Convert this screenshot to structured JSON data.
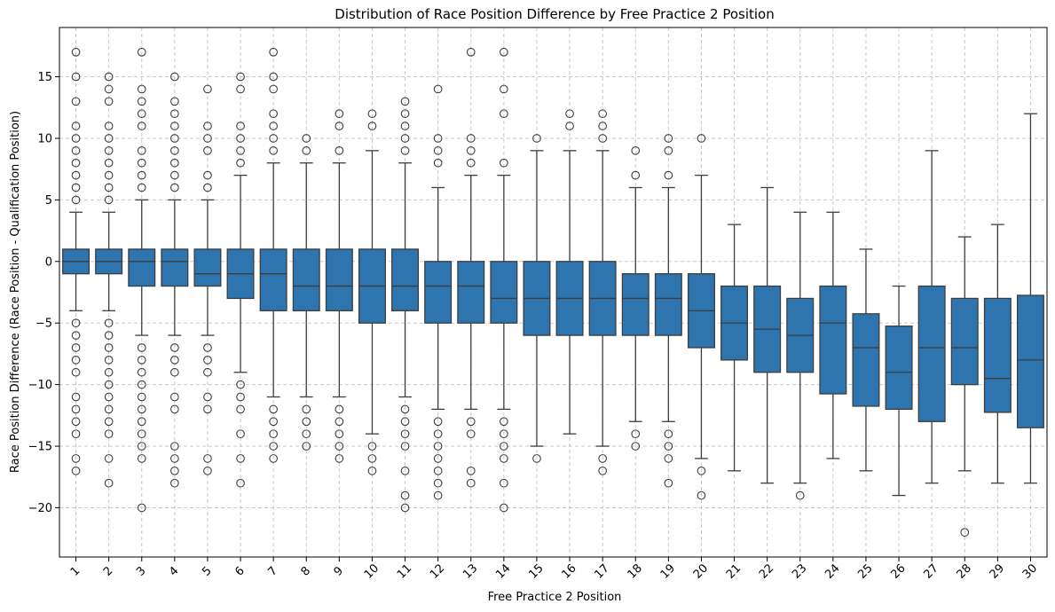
{
  "chart_data": {
    "type": "box",
    "title": "Distribution of Race Position Difference by Free Practice 2 Position",
    "xlabel": "Free Practice 2 Position",
    "ylabel": "Race Position Difference (Race Position - Qualification Position)",
    "ylim": [
      -24,
      19
    ],
    "yticks": [
      -20,
      -15,
      -10,
      -5,
      0,
      5,
      10,
      15
    ],
    "grid": true,
    "box_color": "#2e75b0",
    "line_color": "#3d3d3d",
    "categories": [
      "1",
      "2",
      "3",
      "4",
      "5",
      "6",
      "7",
      "8",
      "9",
      "10",
      "11",
      "12",
      "13",
      "14",
      "15",
      "16",
      "17",
      "18",
      "19",
      "20",
      "21",
      "22",
      "23",
      "24",
      "25",
      "26",
      "27",
      "28",
      "29",
      "30"
    ],
    "boxes": [
      {
        "x": "1",
        "q1": -1,
        "median": 0,
        "q3": 1,
        "whisker_low": -4,
        "whisker_high": 4,
        "outliers": [
          5,
          6,
          7,
          8,
          9,
          10,
          11,
          13,
          15,
          17,
          -5,
          -6,
          -7,
          -8,
          -9,
          -11,
          -12,
          -13,
          -14,
          -16,
          -17
        ]
      },
      {
        "x": "2",
        "q1": -1,
        "median": 0,
        "q3": 1,
        "whisker_low": -4,
        "whisker_high": 4,
        "outliers": [
          5,
          6,
          7,
          8,
          9,
          10,
          11,
          13,
          14,
          15,
          -5,
          -6,
          -7,
          -8,
          -9,
          -10,
          -11,
          -12,
          -13,
          -14,
          -16,
          -18
        ]
      },
      {
        "x": "3",
        "q1": -2,
        "median": 0,
        "q3": 1,
        "whisker_low": -6,
        "whisker_high": 5,
        "outliers": [
          6,
          7,
          8,
          9,
          11,
          12,
          13,
          14,
          17,
          -7,
          -8,
          -9,
          -10,
          -11,
          -12,
          -13,
          -14,
          -15,
          -16,
          -20
        ]
      },
      {
        "x": "4",
        "q1": -2,
        "median": 0,
        "q3": 1,
        "whisker_low": -6,
        "whisker_high": 5,
        "outliers": [
          6,
          7,
          8,
          9,
          10,
          11,
          12,
          13,
          15,
          -7,
          -8,
          -9,
          -11,
          -12,
          -15,
          -16,
          -17,
          -18
        ]
      },
      {
        "x": "5",
        "q1": -2,
        "median": -1,
        "q3": 1,
        "whisker_low": -6,
        "whisker_high": 5,
        "outliers": [
          6,
          7,
          9,
          10,
          11,
          14,
          -7,
          -8,
          -9,
          -11,
          -12,
          -16,
          -17
        ]
      },
      {
        "x": "6",
        "q1": -3,
        "median": -1,
        "q3": 1,
        "whisker_low": -9,
        "whisker_high": 7,
        "outliers": [
          8,
          9,
          10,
          11,
          14,
          15,
          -10,
          -11,
          -12,
          -14,
          -16,
          -18
        ]
      },
      {
        "x": "7",
        "q1": -4,
        "median": -1,
        "q3": 1,
        "whisker_low": -11,
        "whisker_high": 8,
        "outliers": [
          9,
          10,
          11,
          12,
          14,
          15,
          17,
          -12,
          -13,
          -14,
          -15,
          -16
        ]
      },
      {
        "x": "8",
        "q1": -4,
        "median": -2,
        "q3": 1,
        "whisker_low": -11,
        "whisker_high": 8,
        "outliers": [
          9,
          10,
          -12,
          -13,
          -14,
          -15
        ]
      },
      {
        "x": "9",
        "q1": -4,
        "median": -2,
        "q3": 1,
        "whisker_low": -11,
        "whisker_high": 8,
        "outliers": [
          9,
          11,
          12,
          -12,
          -13,
          -14,
          -15,
          -16
        ]
      },
      {
        "x": "10",
        "q1": -5,
        "median": -2,
        "q3": 1,
        "whisker_low": -14,
        "whisker_high": 9,
        "outliers": [
          11,
          12,
          -15,
          -16,
          -17
        ]
      },
      {
        "x": "11",
        "q1": -4,
        "median": -2,
        "q3": 1,
        "whisker_low": -11,
        "whisker_high": 8,
        "outliers": [
          9,
          10,
          11,
          12,
          13,
          -12,
          -13,
          -14,
          -15,
          -17,
          -19,
          -20
        ]
      },
      {
        "x": "12",
        "q1": -5,
        "median": -2,
        "q3": 0,
        "whisker_low": -12,
        "whisker_high": 6,
        "outliers": [
          8,
          9,
          10,
          14,
          -13,
          -14,
          -15,
          -16,
          -17,
          -18,
          -19
        ]
      },
      {
        "x": "13",
        "q1": -5,
        "median": -2,
        "q3": 0,
        "whisker_low": -12,
        "whisker_high": 7,
        "outliers": [
          8,
          9,
          10,
          17,
          -13,
          -14,
          -17,
          -18
        ]
      },
      {
        "x": "14",
        "q1": -5,
        "median": -3,
        "q3": 0,
        "whisker_low": -12,
        "whisker_high": 7,
        "outliers": [
          8,
          12,
          14,
          17,
          -13,
          -14,
          -15,
          -16,
          -18,
          -20
        ]
      },
      {
        "x": "15",
        "q1": -6,
        "median": -3,
        "q3": 0,
        "whisker_low": -15,
        "whisker_high": 9,
        "outliers": [
          10,
          -16
        ]
      },
      {
        "x": "16",
        "q1": -6,
        "median": -3,
        "q3": 0,
        "whisker_low": -14,
        "whisker_high": 9,
        "outliers": [
          11,
          12
        ]
      },
      {
        "x": "17",
        "q1": -6,
        "median": -3,
        "q3": 0,
        "whisker_low": -15,
        "whisker_high": 9,
        "outliers": [
          10,
          11,
          12,
          -16,
          -17
        ]
      },
      {
        "x": "18",
        "q1": -6,
        "median": -3,
        "q3": -1,
        "whisker_low": -13,
        "whisker_high": 6,
        "outliers": [
          7,
          9,
          -14,
          -15
        ]
      },
      {
        "x": "19",
        "q1": -6,
        "median": -3,
        "q3": -1,
        "whisker_low": -13,
        "whisker_high": 6,
        "outliers": [
          7,
          9,
          10,
          -14,
          -15,
          -16,
          -18
        ]
      },
      {
        "x": "20",
        "q1": -7,
        "median": -4,
        "q3": -1,
        "whisker_low": -16,
        "whisker_high": 7,
        "outliers": [
          10,
          -17,
          -19
        ]
      },
      {
        "x": "21",
        "q1": -8,
        "median": -5,
        "q3": -2,
        "whisker_low": -17,
        "whisker_high": 3,
        "outliers": []
      },
      {
        "x": "22",
        "q1": -9,
        "median": -5.5,
        "q3": -2,
        "whisker_low": -18,
        "whisker_high": 6,
        "outliers": []
      },
      {
        "x": "23",
        "q1": -9,
        "median": -6,
        "q3": -3,
        "whisker_low": -18,
        "whisker_high": 4,
        "outliers": [
          -19
        ]
      },
      {
        "x": "24",
        "q1": -10.75,
        "median": -5,
        "q3": -2,
        "whisker_low": -16,
        "whisker_high": 4,
        "outliers": []
      },
      {
        "x": "25",
        "q1": -11.75,
        "median": -7,
        "q3": -4.25,
        "whisker_low": -17,
        "whisker_high": 1,
        "outliers": []
      },
      {
        "x": "26",
        "q1": -12,
        "median": -9,
        "q3": -5.25,
        "whisker_low": -19,
        "whisker_high": -2,
        "outliers": []
      },
      {
        "x": "27",
        "q1": -13,
        "median": -7,
        "q3": -2,
        "whisker_low": -18,
        "whisker_high": 9,
        "outliers": []
      },
      {
        "x": "28",
        "q1": -10,
        "median": -7,
        "q3": -3,
        "whisker_low": -17,
        "whisker_high": 2,
        "outliers": [
          -22
        ]
      },
      {
        "x": "29",
        "q1": -12.25,
        "median": -9.5,
        "q3": -3,
        "whisker_low": -18,
        "whisker_high": 3,
        "outliers": []
      },
      {
        "x": "30",
        "q1": -13.5,
        "median": -8,
        "q3": -2.75,
        "whisker_low": -18,
        "whisker_high": 12,
        "outliers": []
      }
    ]
  }
}
